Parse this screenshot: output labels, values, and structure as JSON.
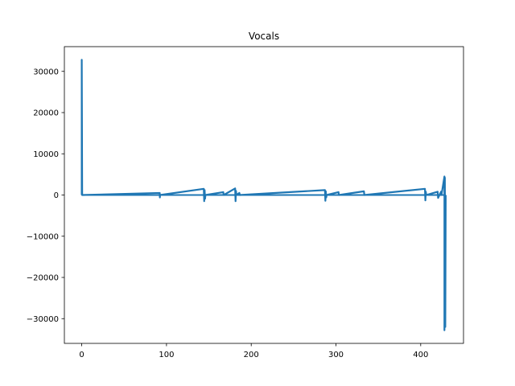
{
  "chart_data": {
    "type": "line",
    "title": "Vocals",
    "xlabel": "",
    "ylabel": "",
    "xlim": [
      -20.5,
      450.5
    ],
    "ylim": [
      -36000,
      36000
    ],
    "x_ticks": [
      0,
      100,
      200,
      300,
      400
    ],
    "x_tick_labels": [
      "0",
      "100",
      "200",
      "300",
      "400"
    ],
    "y_ticks": [
      30000,
      20000,
      10000,
      0,
      -10000,
      -20000,
      -30000
    ],
    "y_tick_labels": [
      "30000",
      "20000",
      "10000",
      "0",
      "−10000",
      "−20000",
      "−30000"
    ],
    "grid": false,
    "series": [
      {
        "color": "#1f77b4",
        "x": [
          0,
          0,
          0.5,
          92,
          92.2,
          92.4,
          144,
          144.5,
          145,
          145.5,
          146,
          167,
          167.5,
          181,
          181.5,
          182,
          182.5,
          186,
          186.5,
          287,
          287.5,
          288,
          288.5,
          289,
          303,
          303.5,
          333,
          333.5,
          405,
          405.5,
          406,
          406.5,
          420,
          420.5,
          424,
          424.5,
          428,
          428,
          428.5,
          429,
          429.5
        ],
        "y": [
          0,
          32800,
          0,
          500,
          -600,
          0,
          1500,
          -1500,
          1200,
          -900,
          0,
          700,
          0,
          1600,
          -1500,
          1000,
          0,
          500,
          0,
          1200,
          -1400,
          900,
          -600,
          0,
          700,
          0,
          900,
          0,
          1500,
          -1300,
          800,
          0,
          800,
          -700,
          800,
          0,
          4500,
          -32800,
          4200,
          -32000,
          0
        ]
      }
    ]
  }
}
